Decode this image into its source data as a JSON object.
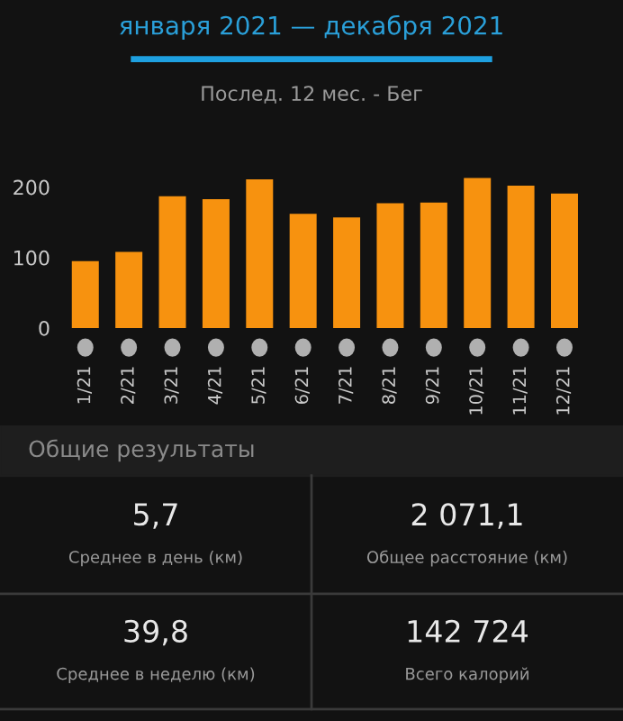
{
  "chart_data": [
    {
      "type": "bar",
      "title": "января 2021 — декабря 2021",
      "subtitle": "Послед. 12 мес. - Бег",
      "categories": [
        "1/21",
        "2/21",
        "3/21",
        "4/21",
        "5/21",
        "6/21",
        "7/21",
        "8/21",
        "9/21",
        "10/21",
        "11/21",
        "12/21"
      ],
      "values": [
        95,
        108,
        187,
        183,
        211,
        162,
        157,
        177,
        178,
        213,
        202,
        191
      ],
      "color": "#f7920f",
      "ylim": [
        0,
        220
      ],
      "yticks": [
        0,
        100,
        200
      ],
      "grid": false,
      "legend": false
    },
    {
      "type": "other",
      "title": "Общие результаты",
      "annotations": [
        "5,7",
        "Среднее в день (км)",
        "2 071,1",
        "Общее расстояние (км)",
        "39,8",
        "Среднее в неделю (км)",
        "142 724",
        "Всего калорий"
      ]
    }
  ]
}
